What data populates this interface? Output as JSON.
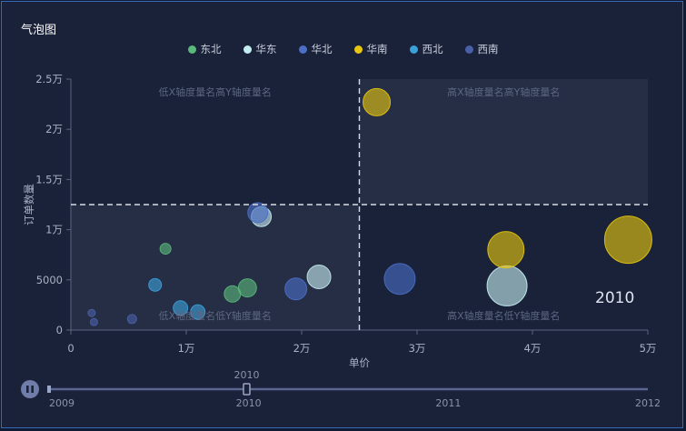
{
  "title": "气泡图",
  "legend": [
    {
      "name": "东北",
      "color": "#5ab87b"
    },
    {
      "name": "华东",
      "color": "#c5ecf0"
    },
    {
      "name": "华北",
      "color": "#4b6ec6"
    },
    {
      "name": "华南",
      "color": "#e6c60e"
    },
    {
      "name": "西北",
      "color": "#3b9fd9"
    },
    {
      "name": "西南",
      "color": "#4a5fa6"
    }
  ],
  "chart_data": {
    "type": "scatter",
    "xlabel": "单价",
    "ylabel": "订单数量",
    "xlim": [
      0,
      50000
    ],
    "ylim": [
      0,
      25000
    ],
    "x_ticks": [
      "0",
      "1万",
      "2万",
      "3万",
      "4万",
      "5万"
    ],
    "y_ticks": [
      "0",
      "5000",
      "1万",
      "1.5万",
      "2万",
      "2.5万"
    ],
    "mark_line_x": 25000,
    "mark_line_y": 12500,
    "quadrant_labels": {
      "top_left": "低X轴度量名高Y轴度量名",
      "top_right": "高X轴度量名高Y轴度量名",
      "bottom_left": "低X轴度量名低Y轴度量名",
      "bottom_right": "高X轴度量名低Y轴度量名"
    },
    "year": "2010",
    "series": [
      {
        "name": "东北",
        "points": [
          [
            8200,
            8100,
            12
          ],
          [
            14000,
            3600,
            18
          ],
          [
            15300,
            4200,
            20
          ]
        ]
      },
      {
        "name": "华东",
        "points": [
          [
            16500,
            11300,
            22
          ],
          [
            21500,
            5300,
            26
          ],
          [
            37800,
            4400,
            44
          ]
        ]
      },
      {
        "name": "华北",
        "points": [
          [
            16200,
            11700,
            22
          ],
          [
            19500,
            4100,
            24
          ],
          [
            28500,
            5100,
            34
          ]
        ]
      },
      {
        "name": "华南",
        "points": [
          [
            26500,
            22700,
            30
          ],
          [
            37700,
            8000,
            40
          ],
          [
            48300,
            9000,
            52
          ]
        ]
      },
      {
        "name": "西北",
        "points": [
          [
            7300,
            4500,
            14
          ],
          [
            9500,
            2200,
            16
          ],
          [
            11000,
            1800,
            16
          ]
        ]
      },
      {
        "name": "西南",
        "points": [
          [
            1800,
            1700,
            8
          ],
          [
            2000,
            800,
            8
          ],
          [
            5300,
            1100,
            10
          ]
        ]
      }
    ]
  },
  "timeline": {
    "years": [
      "2009",
      "2010",
      "2011",
      "2012"
    ],
    "current": "2010",
    "current_value": 0.33
  }
}
